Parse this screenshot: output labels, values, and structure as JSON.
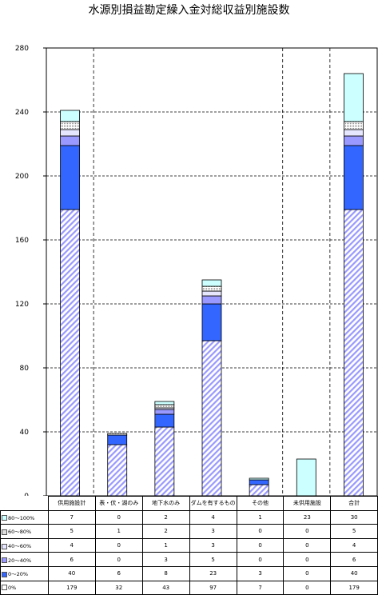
{
  "chart_data": {
    "type": "bar",
    "stacked": true,
    "title": "水源別損益勘定繰入金対総収益別施設数",
    "categories": [
      "供用施設計",
      "表・伏・湖のみ",
      "地下水のみ",
      "ダムを有するもの",
      "その他",
      "未供用施設",
      "合計"
    ],
    "ylim": [
      0,
      280
    ],
    "yticks": [
      0,
      40,
      80,
      120,
      160,
      200,
      240,
      280
    ],
    "grid": "horizontal dashed",
    "series": [
      {
        "name": "0%",
        "color": "#9999ff",
        "values": [
          179,
          32,
          43,
          97,
          7,
          0,
          179
        ]
      },
      {
        "name": "0～20%",
        "color": "#3366ff",
        "values": [
          40,
          6,
          8,
          23,
          3,
          0,
          40
        ]
      },
      {
        "name": "20～40%",
        "color": "#9999ff",
        "values": [
          6,
          0,
          3,
          5,
          0,
          0,
          6
        ]
      },
      {
        "name": "40～60%",
        "color": "#e6e6ff",
        "values": [
          4,
          0,
          1,
          3,
          0,
          0,
          4
        ]
      },
      {
        "name": "60～80%",
        "color": "#dddddd",
        "values": [
          5,
          1,
          2,
          3,
          0,
          0,
          5
        ]
      },
      {
        "name": "80～100%",
        "color": "#ccffff",
        "values": [
          7,
          0,
          2,
          4,
          1,
          23,
          30
        ]
      }
    ]
  },
  "colors": {
    "axis": "#000000",
    "grid": "#000000",
    "dark_blue": "#3366ff",
    "hatch": "#9999ff",
    "cyan": "#ccffff"
  }
}
